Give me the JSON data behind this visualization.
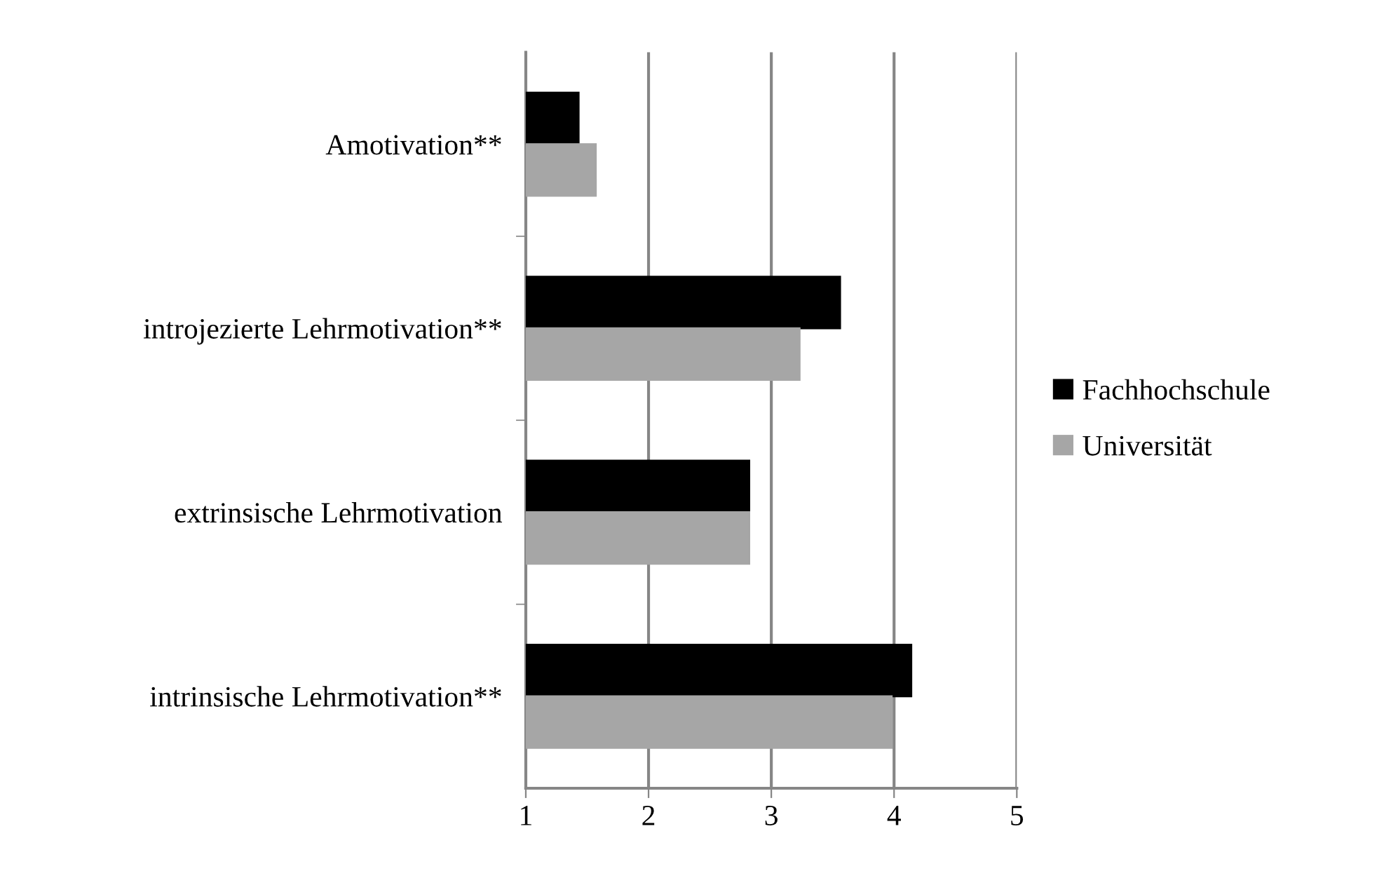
{
  "chart_data": {
    "type": "bar",
    "orientation": "horizontal",
    "categories": [
      "Amotivation**",
      "introjezierte Lehrmotivation**",
      "extrinsische Lehrmotivation",
      "intrinsische Lehrmotivation**"
    ],
    "series": [
      {
        "name": "Fachhochschule",
        "color": "#000000",
        "values": [
          1.43,
          3.56,
          2.82,
          4.14
        ]
      },
      {
        "name": "Universität",
        "color": "#a6a6a6",
        "values": [
          1.57,
          3.23,
          2.82,
          3.98
        ]
      }
    ],
    "xlim": [
      1,
      5
    ],
    "xticks": [
      1,
      2,
      3,
      4,
      5
    ],
    "grid": "x",
    "legend": "right"
  }
}
